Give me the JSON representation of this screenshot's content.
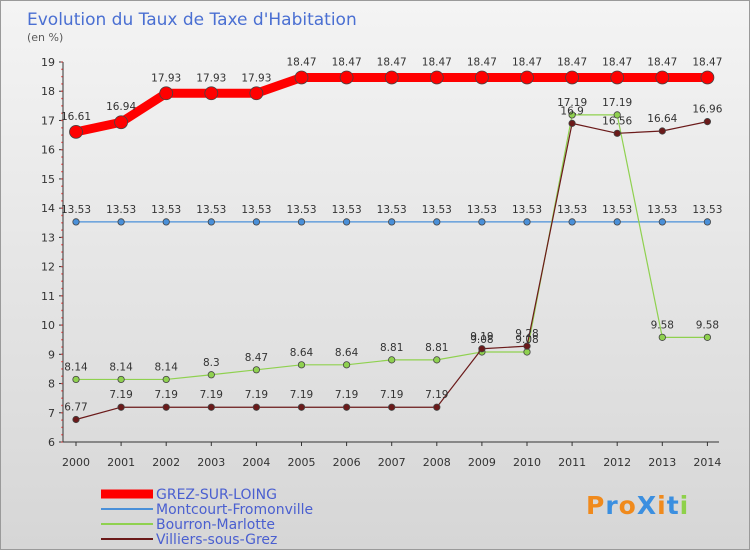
{
  "chart_data": {
    "type": "line",
    "title": "Evolution du Taux de Taxe d'Habitation",
    "ylabel": "(en %)",
    "xlabel": "",
    "ylim": [
      6,
      19
    ],
    "yticks": [
      6,
      7,
      8,
      9,
      10,
      11,
      12,
      13,
      14,
      15,
      16,
      17,
      18,
      19
    ],
    "grid": false,
    "legend_position": "bottom-left",
    "x": [
      "2000",
      "2001",
      "2002",
      "2003",
      "2004",
      "2005",
      "2006",
      "2007",
      "2008",
      "2009",
      "2010",
      "2011",
      "2012",
      "2013",
      "2014"
    ],
    "series": [
      {
        "name": "GREZ-SUR-LOING",
        "color": "#ff0000",
        "values": [
          16.61,
          16.94,
          17.93,
          17.93,
          17.93,
          18.47,
          18.47,
          18.47,
          18.47,
          18.47,
          18.47,
          18.47,
          18.47,
          18.47,
          18.47
        ]
      },
      {
        "name": "Montcourt-Fromonville",
        "color": "#4a90d9",
        "values": [
          13.53,
          13.53,
          13.53,
          13.53,
          13.53,
          13.53,
          13.53,
          13.53,
          13.53,
          13.53,
          13.53,
          13.53,
          13.53,
          13.53,
          13.53
        ]
      },
      {
        "name": "Bourron-Marlotte",
        "color": "#8fd14f",
        "values": [
          8.14,
          8.14,
          8.14,
          8.3,
          8.47,
          8.64,
          8.64,
          8.81,
          8.81,
          9.08,
          9.08,
          17.19,
          17.19,
          9.58,
          9.58
        ]
      },
      {
        "name": "Villiers-sous-Grez",
        "color": "#6b1a1a",
        "values": [
          6.77,
          7.19,
          7.19,
          7.19,
          7.19,
          7.19,
          7.19,
          7.19,
          7.19,
          9.19,
          9.28,
          16.9,
          16.56,
          16.64,
          16.96
        ]
      }
    ]
  },
  "logo": {
    "text": "ProXiti",
    "colors": [
      "#f08a1c",
      "#3b8fe0",
      "#f08a1c",
      "#3b8fe0",
      "#f08a1c",
      "#3b8fe0",
      "#8ed14a"
    ]
  }
}
